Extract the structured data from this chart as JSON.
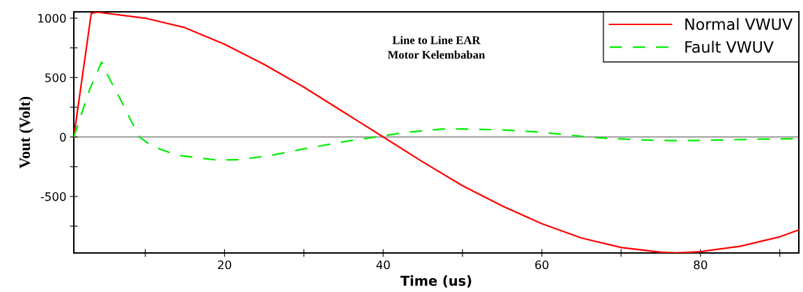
{
  "chart_data": {
    "type": "line",
    "title": "Line to Line EAR\nMotor Kelembaban",
    "xlabel": "Time (us)",
    "ylabel": "Vout (Volt)",
    "xlim": [
      1,
      92.4
    ],
    "ylim": [
      -976,
      1053
    ],
    "xticks": [
      {
        "value": 10,
        "label": null
      },
      20,
      {
        "value": 30,
        "label": null
      },
      40,
      {
        "value": 50,
        "label": null
      },
      60,
      {
        "value": 70,
        "label": null
      },
      80,
      {
        "value": 90,
        "label": null
      }
    ],
    "yticks": [
      {
        "value": -750,
        "label": null
      },
      -500,
      {
        "value": -250,
        "label": null
      },
      0,
      {
        "value": 250,
        "label": null
      },
      500,
      {
        "value": 750,
        "label": null
      },
      1000
    ],
    "grid": false,
    "legend": "top right",
    "marker": "none",
    "ref_lines": [
      {
        "axis": "y",
        "value": 0,
        "color": "#999999"
      }
    ],
    "series": [
      {
        "name": "Normal VWUV",
        "color": "#ff0000",
        "line_style": "solid",
        "x": [
          1,
          3.2,
          4,
          10,
          15,
          20,
          25,
          30,
          35,
          40,
          45,
          50,
          55,
          60,
          65,
          70,
          75,
          77,
          80,
          85,
          90,
          92.4
        ],
        "values": [
          0,
          1040,
          1050,
          1000,
          920,
          780,
          610,
          420,
          210,
          0,
          -210,
          -410,
          -580,
          -730,
          -850,
          -930,
          -970,
          -975,
          -965,
          -920,
          -840,
          -782
        ]
      },
      {
        "name": "Fault VWUV",
        "color": "#00ee00",
        "line_style": "dashed",
        "x": [
          1,
          3,
          4.5,
          5.5,
          7,
          8.2,
          9.3,
          10.8,
          14,
          19,
          22,
          26,
          30,
          35,
          39,
          43,
          48,
          55,
          60,
          65,
          67,
          71,
          75,
          79,
          83,
          87.6,
          92.4
        ],
        "values": [
          0,
          400,
          630,
          490,
          300,
          140,
          0,
          -76,
          -153,
          -194,
          -190,
          -153,
          -100,
          -40,
          0,
          40,
          70,
          60,
          40,
          5,
          -6,
          -20,
          -30,
          -30,
          -25,
          -18,
          -15
        ]
      }
    ]
  }
}
